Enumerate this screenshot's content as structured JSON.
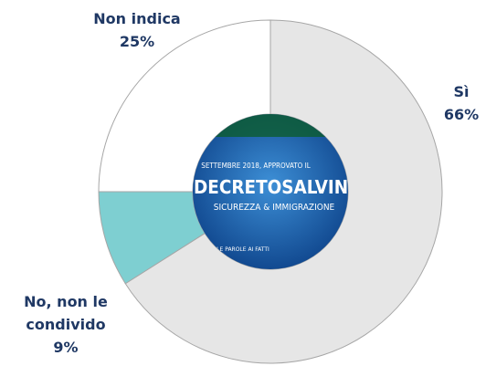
{
  "chart_data": {
    "type": "donut",
    "categories": [
      "Sì",
      "No, non le condivido",
      "Non indica"
    ],
    "values": [
      66,
      9,
      25
    ],
    "value_labels": [
      "66%",
      "9%",
      "25%"
    ],
    "colors": [
      "#e6e6e6",
      "#7ecfd1",
      "#ffffff"
    ],
    "center_image_texts": [
      "SETTEMBRE 2018, APPROVATO IL",
      "DECRETOSALVINI",
      "SICUREZZA & IMMIGRAZIONE",
      "DALLE PAROLE AI FATTI"
    ]
  }
}
